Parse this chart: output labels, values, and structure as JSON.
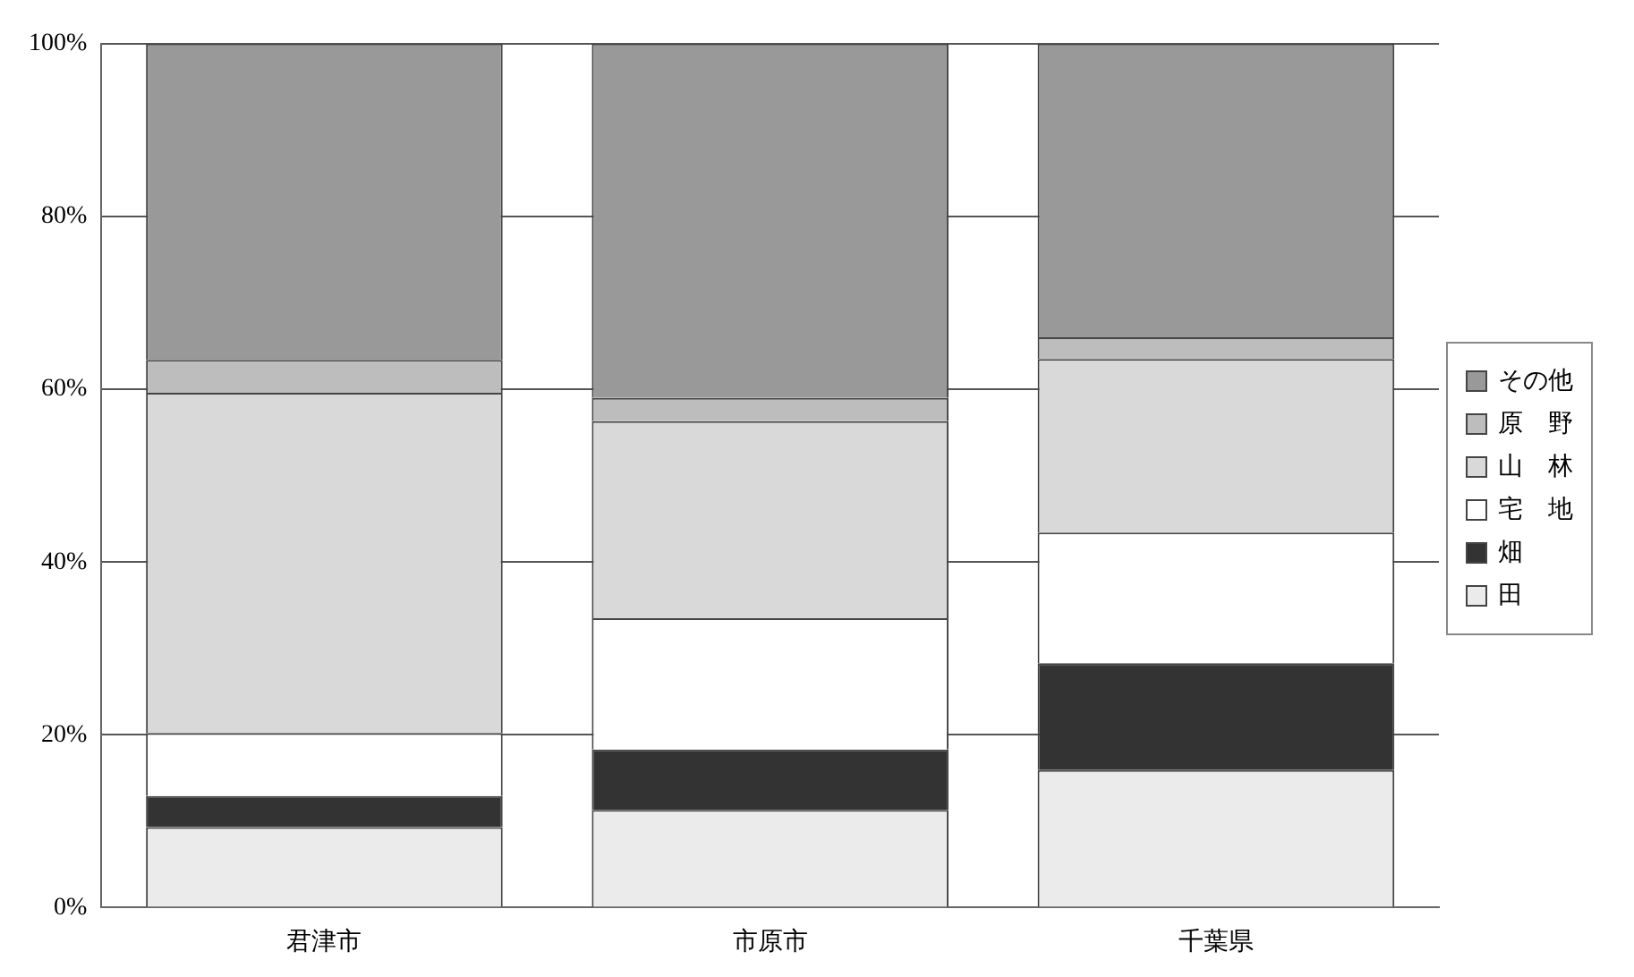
{
  "chart_data": {
    "type": "bar",
    "stacked": true,
    "categories": [
      "君津市",
      "市原市",
      "千葉県"
    ],
    "series": [
      {
        "name": "田",
        "color": "#ebebeb",
        "values": [
          9.3,
          11.3,
          15.9
        ]
      },
      {
        "name": "畑",
        "color": "#333333",
        "values": [
          3.6,
          7.0,
          12.4
        ]
      },
      {
        "name": "宅　地",
        "color": "#ffffff",
        "values": [
          7.3,
          15.2,
          15.1
        ]
      },
      {
        "name": "山　林",
        "color": "#d9d9d9",
        "values": [
          39.4,
          22.8,
          20.1
        ]
      },
      {
        "name": "原　野",
        "color": "#bdbdbd",
        "values": [
          3.8,
          2.7,
          2.5
        ]
      },
      {
        "name": "その他",
        "color": "#999999",
        "values": [
          36.6,
          41.0,
          34.0
        ]
      }
    ],
    "ylim": [
      0,
      100
    ],
    "yticks": [
      {
        "value": 0,
        "label": "0%"
      },
      {
        "value": 20,
        "label": "20%"
      },
      {
        "value": 40,
        "label": "40%"
      },
      {
        "value": 60,
        "label": "60%"
      },
      {
        "value": 80,
        "label": "80%"
      },
      {
        "value": 100,
        "label": "100%"
      }
    ],
    "grid": "y",
    "legend": "right"
  }
}
